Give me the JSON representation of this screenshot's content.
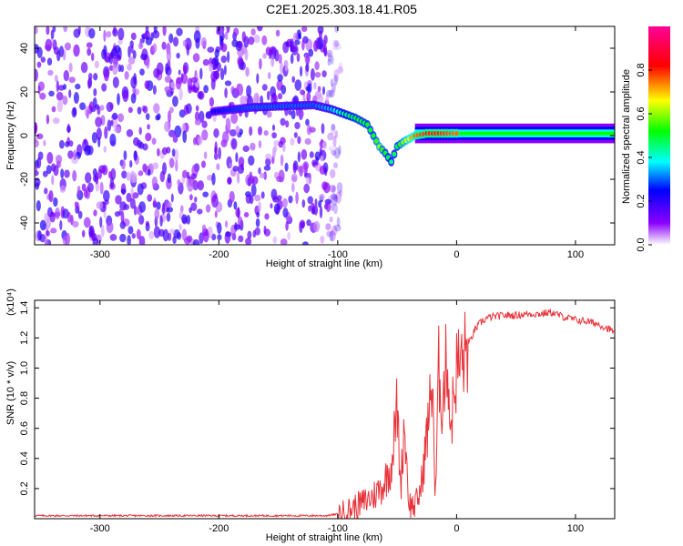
{
  "title": "C2E1.2025.303.18.41.R05",
  "chart_data": [
    {
      "type": "heatmap",
      "xlabel": "Height of straight line (km)",
      "ylabel": "Frequency (Hz)",
      "xlim": [
        -355,
        133
      ],
      "ylim": [
        -50,
        50
      ],
      "xticks": [
        -300,
        -200,
        -100,
        0,
        100
      ],
      "yticks": [
        -40,
        -20,
        0,
        20,
        40
      ],
      "colorbar": {
        "label": "Normalized spectral amplitude",
        "range": [
          0,
          1
        ],
        "ticks": [
          "0.0",
          "0.2",
          "0.4",
          "0.6",
          "0.8"
        ],
        "colors": [
          "#ffffff",
          "#8a00ff",
          "#0000ff",
          "#00ffff",
          "#00ff00",
          "#ffff00",
          "#ff0000",
          "#ff0099"
        ]
      },
      "noise_region_x": [
        -355,
        -100
      ],
      "ridge": [
        {
          "x": -205,
          "y": 11,
          "amp": 0.25
        },
        {
          "x": -170,
          "y": 13,
          "amp": 0.3
        },
        {
          "x": -120,
          "y": 14,
          "amp": 0.3
        },
        {
          "x": -105,
          "y": 12,
          "amp": 0.35
        },
        {
          "x": -95,
          "y": 10,
          "amp": 0.45
        },
        {
          "x": -85,
          "y": 8,
          "amp": 0.5
        },
        {
          "x": -75,
          "y": 5,
          "amp": 0.5
        },
        {
          "x": -70,
          "y": 0,
          "amp": 0.5
        },
        {
          "x": -65,
          "y": -5,
          "amp": 0.6
        },
        {
          "x": -60,
          "y": -8,
          "amp": 0.5
        },
        {
          "x": -55,
          "y": -12,
          "amp": 0.45
        },
        {
          "x": -50,
          "y": -5,
          "amp": 0.5
        },
        {
          "x": -45,
          "y": -3,
          "amp": 0.6
        },
        {
          "x": -35,
          "y": 0,
          "amp": 0.75
        },
        {
          "x": -25,
          "y": 1,
          "amp": 0.8
        },
        {
          "x": -15,
          "y": 1,
          "amp": 0.8
        },
        {
          "x": 0,
          "y": 1,
          "amp": 0.75
        },
        {
          "x": 30,
          "y": 1,
          "amp": 0.55
        },
        {
          "x": 75,
          "y": 1,
          "amp": 0.55
        },
        {
          "x": 133,
          "y": 1,
          "amp": 0.5
        }
      ]
    },
    {
      "type": "line",
      "xlabel": "Height of straight line (km)",
      "ylabel": "SNR (10 * v/v)",
      "y_multiplier": "(x10⁴)",
      "xlim": [
        -355,
        133
      ],
      "ylim": [
        0,
        1.45
      ],
      "xticks": [
        -300,
        -200,
        -100,
        0,
        100
      ],
      "yticks": [
        0.2,
        0.4,
        0.6,
        0.8,
        1.0,
        1.2,
        1.4
      ],
      "series": [
        {
          "color": "#e8333a",
          "x": [
            -355,
            -300,
            -250,
            -200,
            -150,
            -110,
            -100,
            -90,
            -80,
            -70,
            -62,
            -55,
            -50,
            -47,
            -44,
            -40,
            -35,
            -30,
            -25,
            -20,
            -18,
            -15,
            -12,
            -8,
            -5,
            0,
            5,
            10,
            15,
            20,
            25,
            30,
            40,
            50,
            60,
            70,
            80,
            90,
            100,
            110,
            120,
            133
          ],
          "y": [
            0.02,
            0.02,
            0.02,
            0.02,
            0.02,
            0.02,
            0.03,
            0.06,
            0.1,
            0.15,
            0.22,
            0.35,
            0.75,
            0.2,
            0.65,
            0.1,
            0.08,
            0.2,
            0.55,
            0.95,
            0.05,
            1.0,
            0.75,
            1.1,
            0.6,
            1.0,
            1.05,
            1.15,
            1.25,
            1.3,
            1.33,
            1.34,
            1.35,
            1.35,
            1.36,
            1.36,
            1.37,
            1.34,
            1.32,
            1.31,
            1.29,
            1.24
          ]
        }
      ]
    }
  ]
}
